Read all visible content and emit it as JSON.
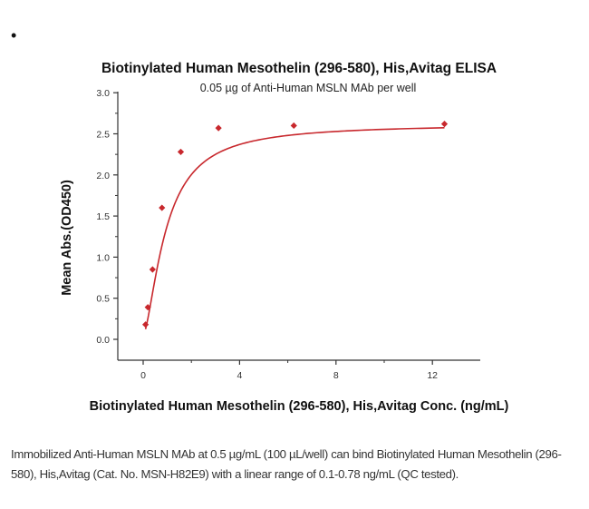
{
  "page": {
    "bullet": "•",
    "caption": "Immobilized Anti-Human MSLN MAb at 0.5 µg/mL (100 µL/well) can bind Biotinylated Human Mesothelin (296-580), His,Avitag (Cat. No. MSN-H82E9) with a linear range of 0.1-0.78 ng/mL (QC tested)."
  },
  "chart_data": {
    "type": "scatter",
    "title": "Biotinylated Human Mesothelin (296-580), His,Avitag ELISA",
    "subtitle": "0.05 µg of Anti-Human MSLN MAb per well",
    "xlabel": "Biotinylated Human Mesothelin (296-580), His,Avitag Conc. (ng/mL)",
    "ylabel": "Mean Abs.(OD450)",
    "xlim": [
      -1,
      14
    ],
    "ylim": [
      -0.25,
      3.0
    ],
    "xticks": [
      0,
      4,
      8,
      12
    ],
    "yticks": [
      0.0,
      0.5,
      1.0,
      1.5,
      2.0,
      2.5,
      3.0
    ],
    "ytick_labels": [
      "0.0",
      "0.5",
      "1.0",
      "1.5",
      "2.0",
      "2.5",
      "3.0"
    ],
    "grid": false,
    "legend": null,
    "series": [
      {
        "name": "Mean Abs.(OD450)",
        "color": "#c8282d",
        "marker": "diamond",
        "fit": "4-parameter logistic curve",
        "x": [
          0.098,
          0.195,
          0.39,
          0.78,
          1.56,
          3.125,
          6.25,
          12.5
        ],
        "y": [
          0.18,
          0.39,
          0.85,
          1.6,
          2.28,
          2.57,
          2.6,
          2.62
        ]
      }
    ]
  }
}
